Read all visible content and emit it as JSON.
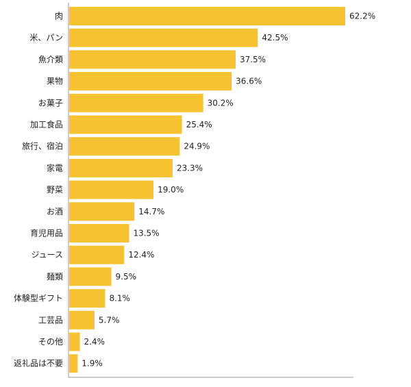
{
  "chart_data": {
    "type": "bar",
    "orientation": "horizontal",
    "categories": [
      "肉",
      "米、パン",
      "魚介類",
      "果物",
      "お菓子",
      "加工食品",
      "旅行、宿泊",
      "家電",
      "野菜",
      "お酒",
      "育児用品",
      "ジュース",
      "麺類",
      "体験型ギフト",
      "工芸品",
      "その他",
      "返礼品は不要"
    ],
    "values": [
      62.2,
      42.5,
      37.5,
      36.6,
      30.2,
      25.4,
      24.9,
      23.3,
      19.0,
      14.7,
      13.5,
      12.4,
      9.5,
      8.1,
      5.7,
      2.4,
      1.9
    ],
    "value_labels": [
      "62.2%",
      "42.5%",
      "37.5%",
      "36.6%",
      "30.2%",
      "25.4%",
      "24.9%",
      "23.3%",
      "19.0%",
      "14.7%",
      "13.5%",
      "12.4%",
      "9.5%",
      "8.1%",
      "5.7%",
      "2.4%",
      "1.9%"
    ],
    "xlim": [
      0,
      62.2
    ],
    "bar_color": "#F5C231",
    "axis_color": "#999999",
    "grid": false,
    "legend": "none"
  }
}
